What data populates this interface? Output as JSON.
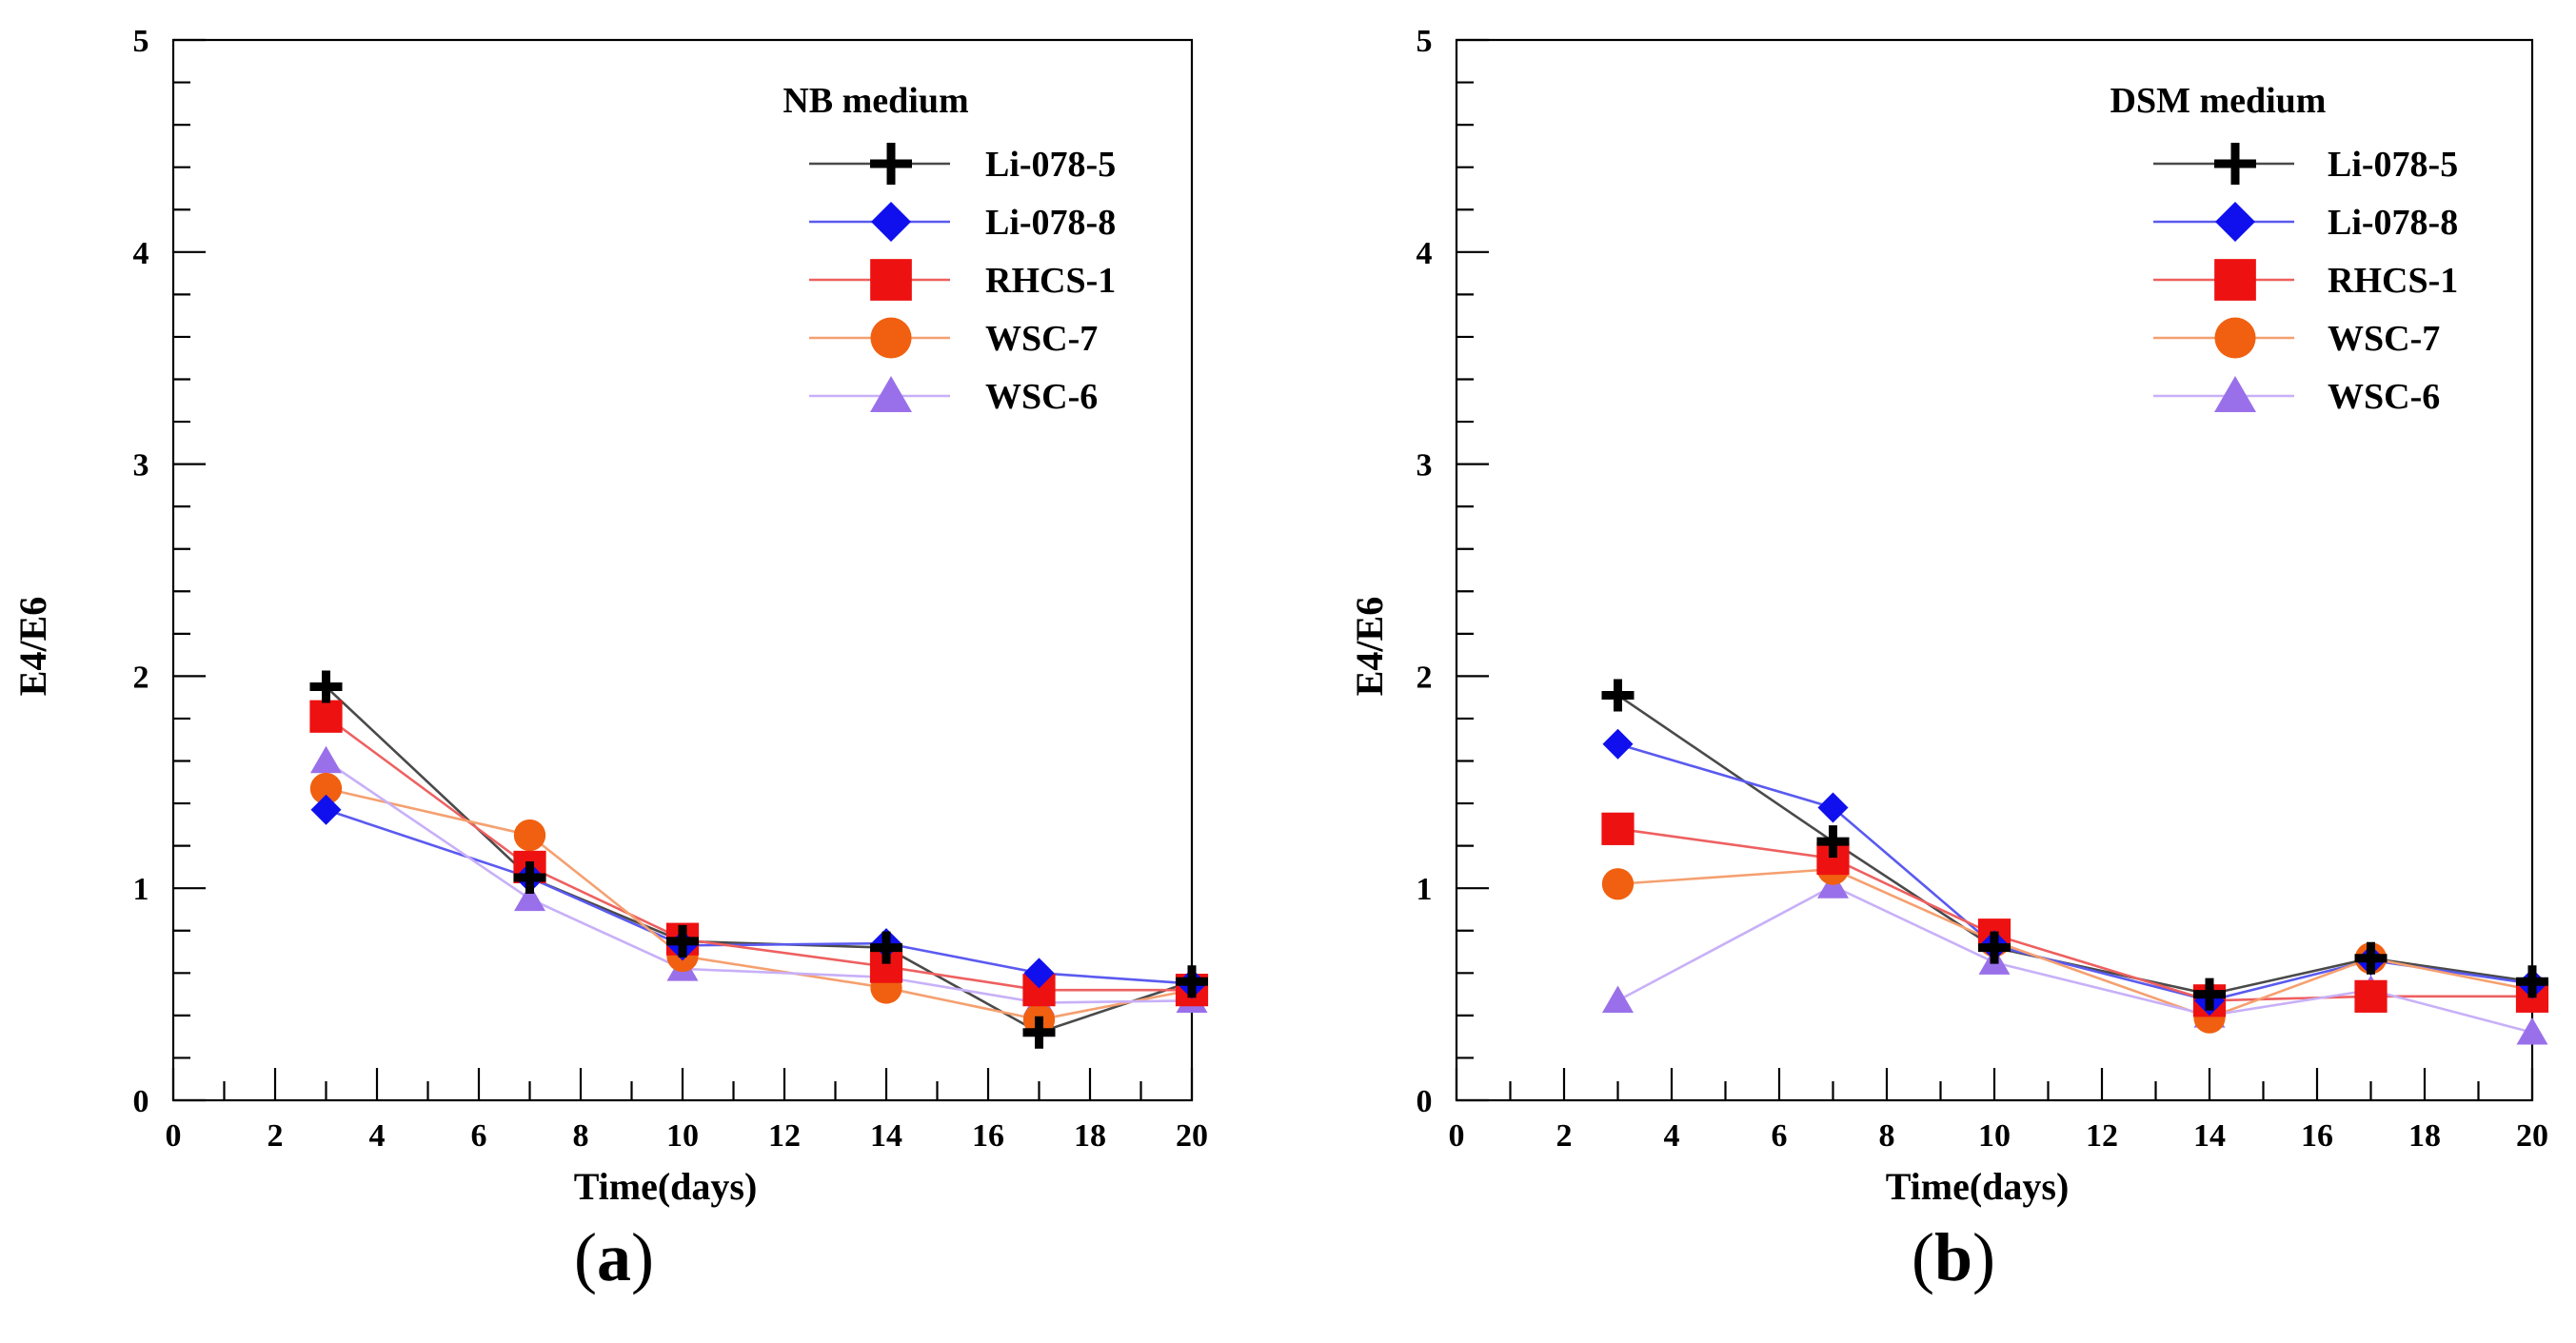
{
  "figure_title": "",
  "chart_data": [
    {
      "type": "line",
      "panel_label": "a",
      "legend_title": "NB medium",
      "xlabel": "Time(days)",
      "ylabel": "E4/E6",
      "xlim": [
        0,
        20
      ],
      "ylim": [
        0,
        5
      ],
      "xticks": [
        "0",
        "2",
        "4",
        "6",
        "8",
        "10",
        "12",
        "14",
        "16",
        "18",
        "20"
      ],
      "yticks": [
        "0",
        "1",
        "2",
        "3",
        "4",
        "5"
      ],
      "x": [
        3,
        7,
        10,
        14,
        17,
        20
      ],
      "series": [
        {
          "name": "Li-078-5",
          "marker": "plus",
          "line_color": "#4a4a4a",
          "marker_color": "#000000",
          "values": [
            1.95,
            1.05,
            0.75,
            0.72,
            0.32,
            0.56
          ]
        },
        {
          "name": "Li-078-8",
          "marker": "diamond",
          "line_color": "#5a5af0",
          "marker_color": "#1010ee",
          "values": [
            1.37,
            1.05,
            0.73,
            0.74,
            0.6,
            0.55
          ]
        },
        {
          "name": "RHCS-1",
          "marker": "square",
          "line_color": "#ee6060",
          "marker_color": "#ee1111",
          "values": [
            1.81,
            1.1,
            0.76,
            0.63,
            0.52,
            0.52
          ]
        },
        {
          "name": "WSC-7",
          "marker": "circle",
          "line_color": "#f5a070",
          "marker_color": "#f06010",
          "values": [
            1.47,
            1.25,
            0.68,
            0.53,
            0.38,
            0.52
          ]
        },
        {
          "name": "WSC-6",
          "marker": "triangle",
          "line_color": "#c8b0f8",
          "marker_color": "#9a70ea",
          "values": [
            1.6,
            0.95,
            0.62,
            0.58,
            0.46,
            0.47
          ]
        }
      ]
    },
    {
      "type": "line",
      "panel_label": "b",
      "legend_title": "DSM medium",
      "xlabel": "Time(days)",
      "ylabel": "E4/E6",
      "xlim": [
        0,
        20
      ],
      "ylim": [
        0,
        5
      ],
      "xticks": [
        "0",
        "2",
        "4",
        "6",
        "8",
        "10",
        "12",
        "14",
        "16",
        "18",
        "20"
      ],
      "yticks": [
        "0",
        "1",
        "2",
        "3",
        "4",
        "5"
      ],
      "x": [
        3,
        7,
        10,
        14,
        17,
        20
      ],
      "series": [
        {
          "name": "Li-078-5",
          "marker": "plus",
          "line_color": "#4a4a4a",
          "marker_color": "#000000",
          "values": [
            1.91,
            1.22,
            0.72,
            0.5,
            0.67,
            0.56
          ]
        },
        {
          "name": "Li-078-8",
          "marker": "diamond",
          "line_color": "#5a5af0",
          "marker_color": "#1010ee",
          "values": [
            1.68,
            1.38,
            0.73,
            0.47,
            0.66,
            0.55
          ]
        },
        {
          "name": "RHCS-1",
          "marker": "square",
          "line_color": "#ee6060",
          "marker_color": "#ee1111",
          "values": [
            1.28,
            1.14,
            0.78,
            0.47,
            0.49,
            0.49
          ]
        },
        {
          "name": "WSC-7",
          "marker": "circle",
          "line_color": "#f5a070",
          "marker_color": "#f06010",
          "values": [
            1.02,
            1.09,
            0.75,
            0.39,
            0.67,
            0.52
          ]
        },
        {
          "name": "WSC-6",
          "marker": "triangle",
          "line_color": "#c8b0f8",
          "marker_color": "#9a70ea",
          "values": [
            0.47,
            1.01,
            0.65,
            0.4,
            0.52,
            0.32
          ]
        }
      ]
    }
  ]
}
